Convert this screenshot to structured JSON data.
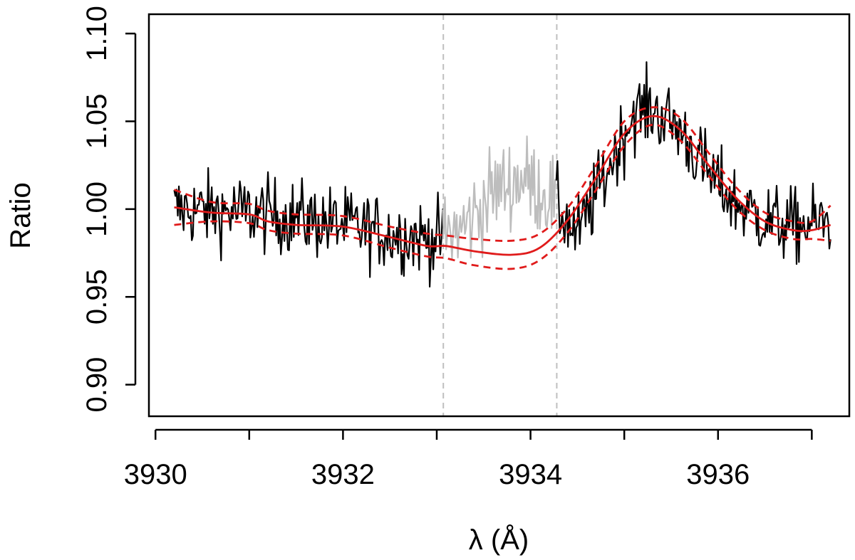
{
  "chart_data": {
    "type": "line",
    "title": "",
    "xlabel": "λ (Å)",
    "ylabel": "Ratio",
    "xlim": [
      3929.93,
      3937.4
    ],
    "ylim": [
      0.882,
      1.111
    ],
    "x_ticks": [
      3930,
      3931,
      3932,
      3933,
      3934,
      3935,
      3936,
      3937
    ],
    "x_tick_labels": [
      "3930",
      "3932",
      "3934",
      "3936"
    ],
    "x_tick_label_values": [
      3930,
      3932,
      3934,
      3936
    ],
    "y_ticks": [
      0.9,
      0.95,
      1.0,
      1.05,
      1.1
    ],
    "y_tick_labels": [
      "0.90",
      "0.95",
      "1.00",
      "1.05",
      "1.10"
    ],
    "grid": false,
    "legend": "none",
    "vlines": {
      "x": [
        3933.07,
        3934.28
      ],
      "style": "dashed",
      "color": "#bfbfbf"
    },
    "excluded_range": [
      3933.07,
      3934.28
    ],
    "series": [
      {
        "style": "solid",
        "color": "#000000",
        "excluded_color": "#bdbdbd",
        "x_range": [
          3930.2,
          3937.2
        ],
        "noise_sigma": 0.018,
        "excluded_noise_sigma": 0.022,
        "envelope": {
          "x": [
            3930.2,
            3930.6,
            3931.0,
            3931.5,
            3932.0,
            3932.5,
            3933.0,
            3933.3,
            3933.6,
            3933.9,
            3934.2,
            3934.5,
            3934.8,
            3935.1,
            3935.3,
            3935.6,
            3935.9,
            3936.2,
            3936.5,
            3936.8,
            3937.2
          ],
          "y": [
            1.0,
            0.999,
            0.998,
            0.995,
            0.991,
            0.986,
            0.983,
            0.99,
            1.01,
            1.018,
            1.008,
            0.985,
            1.02,
            1.055,
            1.057,
            1.045,
            1.02,
            1.003,
            0.994,
            0.99,
            0.993
          ]
        }
      },
      {
        "style": "solid",
        "color": "#e01b1b",
        "x": [
          3930.2,
          3930.6,
          3931.0,
          3931.2,
          3931.5,
          3932.0,
          3932.5,
          3932.9,
          3933.1,
          3933.4,
          3933.8,
          3934.1,
          3934.4,
          3934.7,
          3935.0,
          3935.3,
          3935.6,
          3935.9,
          3936.2,
          3936.5,
          3936.8,
          3937.0,
          3937.2
        ],
        "y": [
          1.001,
          0.998,
          0.997,
          0.993,
          0.991,
          0.99,
          0.984,
          0.979,
          0.979,
          0.976,
          0.974,
          0.978,
          0.994,
          1.018,
          1.043,
          1.053,
          1.045,
          1.025,
          1.006,
          0.993,
          0.988,
          0.988,
          0.991
        ]
      },
      {
        "style": "dashed",
        "color": "#e01b1b",
        "x": [
          3930.2,
          3930.6,
          3931.0,
          3931.2,
          3931.5,
          3932.0,
          3932.5,
          3932.9,
          3933.1,
          3933.4,
          3933.8,
          3934.1,
          3934.4,
          3934.7,
          3935.0,
          3935.3,
          3935.6,
          3935.9,
          3936.2,
          3936.5,
          3936.8,
          3937.0,
          3937.2
        ],
        "y": [
          1.011,
          1.004,
          1.003,
          0.999,
          0.997,
          0.996,
          0.99,
          0.986,
          0.985,
          0.983,
          0.982,
          0.986,
          1.001,
          1.025,
          1.05,
          1.058,
          1.052,
          1.032,
          1.012,
          0.998,
          0.993,
          0.993,
          1.002
        ]
      },
      {
        "style": "dashed",
        "color": "#e01b1b",
        "x": [
          3930.2,
          3930.6,
          3931.0,
          3931.2,
          3931.5,
          3932.0,
          3932.5,
          3932.9,
          3933.1,
          3933.4,
          3933.8,
          3934.1,
          3934.4,
          3934.7,
          3935.0,
          3935.3,
          3935.6,
          3935.9,
          3936.2,
          3936.5,
          3936.8,
          3937.0,
          3937.2
        ],
        "y": [
          0.991,
          0.993,
          0.992,
          0.988,
          0.986,
          0.985,
          0.978,
          0.973,
          0.972,
          0.968,
          0.966,
          0.971,
          0.987,
          1.011,
          1.036,
          1.048,
          1.039,
          1.019,
          1.0,
          0.988,
          0.983,
          0.983,
          0.982
        ]
      }
    ]
  }
}
